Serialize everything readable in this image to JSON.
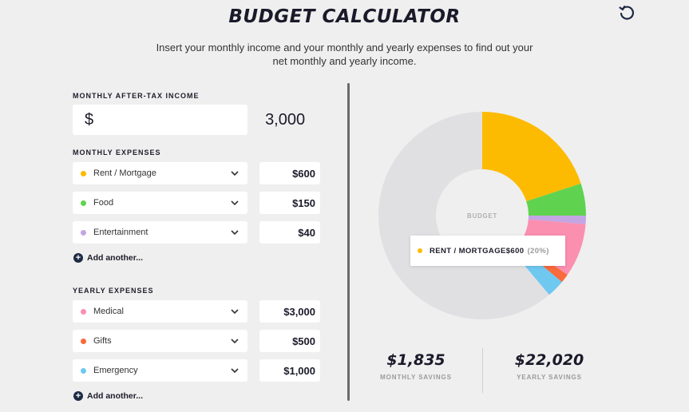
{
  "header": {
    "title": "BUDGET CALCULATOR",
    "subtitle": "Insert your monthly income and your monthly and yearly expenses to find out your net monthly and yearly income.",
    "reset_icon": "reset-icon"
  },
  "income": {
    "label": "MONTHLY AFTER-TAX INCOME",
    "currency": "$",
    "value": "3,000"
  },
  "monthly": {
    "label": "MONTHLY EXPENSES",
    "items": [
      {
        "name": "Rent / Mortgage",
        "color": "#fcbb00",
        "amount": "$600"
      },
      {
        "name": "Food",
        "color": "#5fd34f",
        "amount": "$150"
      },
      {
        "name": "Entertainment",
        "color": "#c4a6e4",
        "amount": "$40"
      }
    ],
    "add_label": "Add another..."
  },
  "yearly": {
    "label": "YEARLY EXPENSES",
    "items": [
      {
        "name": "Medical",
        "color": "#fb8fb0",
        "amount": "$3,000"
      },
      {
        "name": "Gifts",
        "color": "#f96a3c",
        "amount": "$500"
      },
      {
        "name": "Emergency",
        "color": "#6fc8f0",
        "amount": "$1,000"
      }
    ],
    "add_label": "Add another..."
  },
  "chart": {
    "center_label": "BUDGET",
    "remainder_color": "#e0e0e2",
    "tooltip": {
      "name": "RENT / MORTGAGE",
      "value": "$600",
      "percent": "(20%)",
      "color": "#fcbb00"
    }
  },
  "chart_data": {
    "type": "pie",
    "categories": [
      "Rent / Mortgage",
      "Food",
      "Entertainment",
      "Medical",
      "Gifts",
      "Emergency",
      "Savings"
    ],
    "values": [
      600,
      150,
      40,
      250,
      41.67,
      83.33,
      1835
    ],
    "colors": [
      "#fcbb00",
      "#5fd34f",
      "#c4a6e4",
      "#fb8fb0",
      "#f96a3c",
      "#6fc8f0",
      "#e0e0e2"
    ]
  },
  "savings": {
    "monthly_value": "$1,835",
    "monthly_label": "MONTHLY SAVINGS",
    "yearly_value": "$22,020",
    "yearly_label": "YEARLY SAVINGS"
  }
}
